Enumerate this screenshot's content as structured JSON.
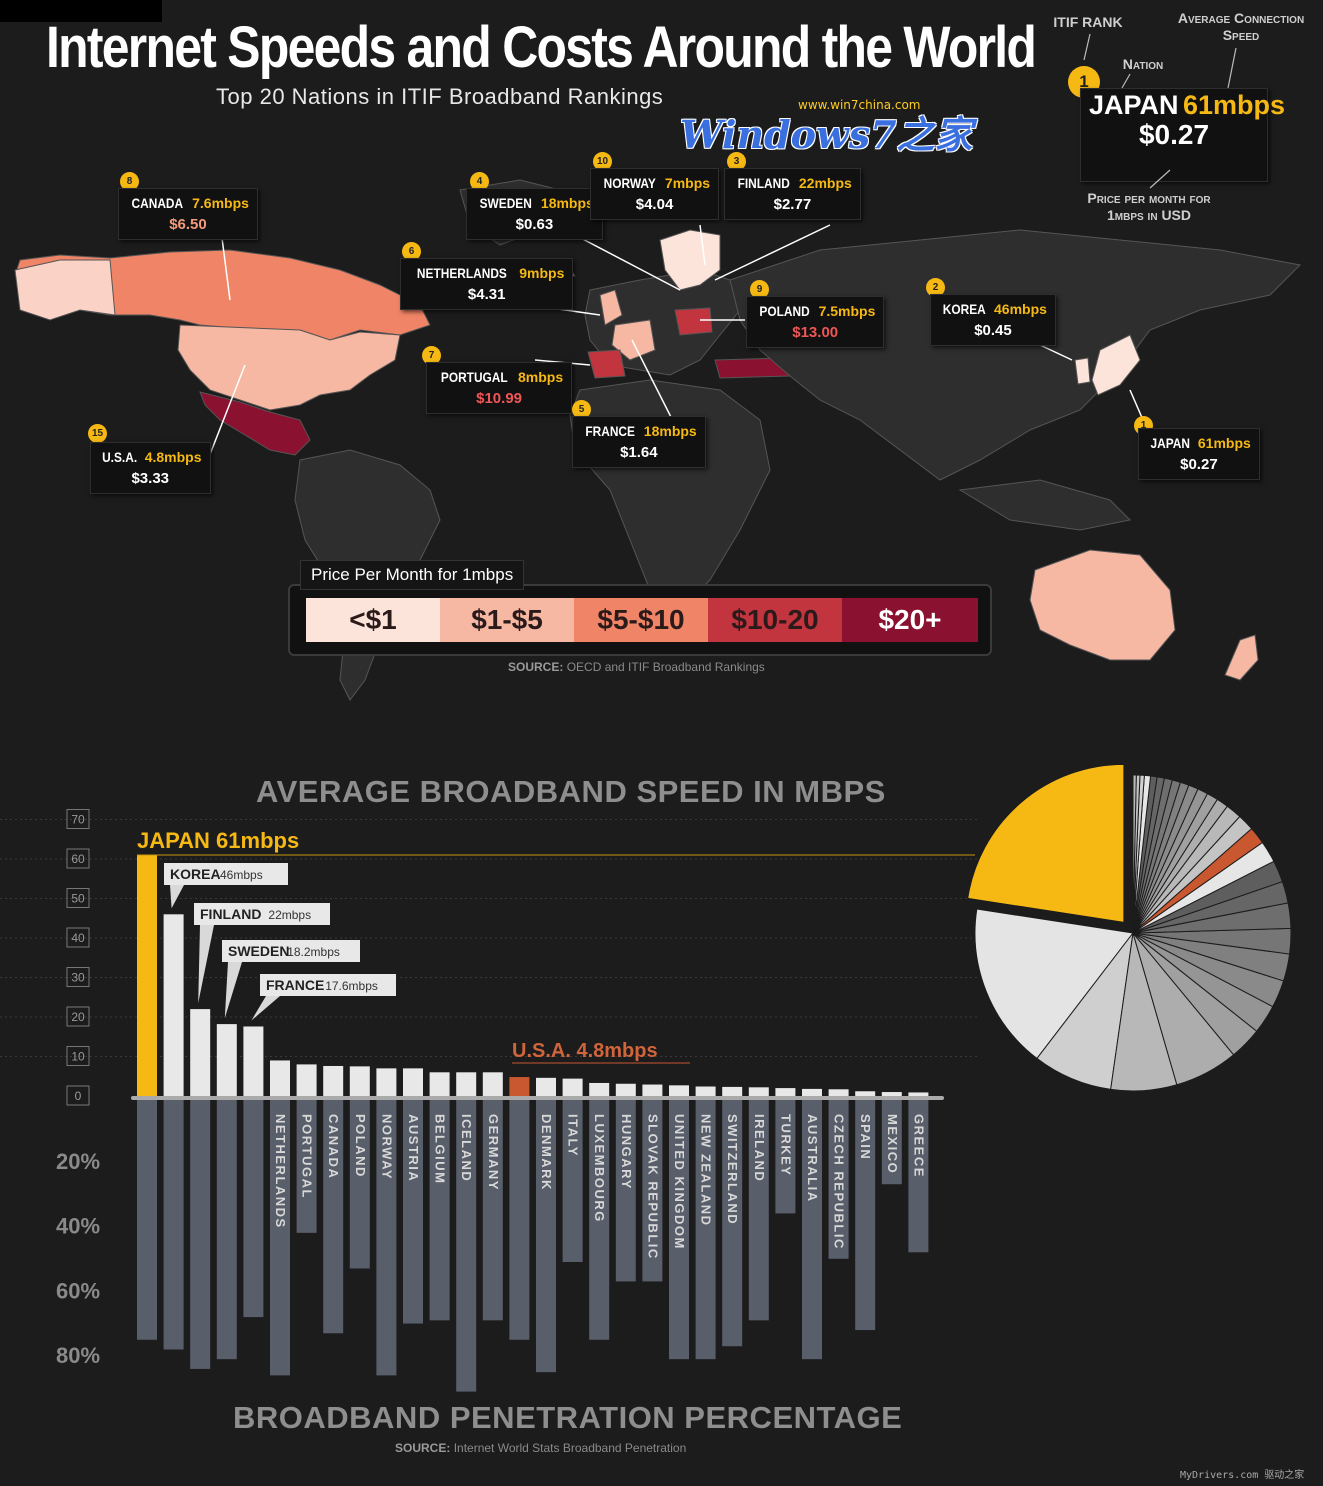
{
  "header": {
    "title": "Internet Speeds and Costs Around the World",
    "subtitle": "Top 20 Nations in ITIF Broadband Rankings"
  },
  "watermark": {
    "url": "www.win7china.com",
    "logo": "Windows7之家"
  },
  "key": {
    "itif_rank": "ITIF RANK",
    "nation": "Nation",
    "avg_speed": "Average Connection Speed",
    "price_note": "Price per month for 1mbps in USD",
    "example": {
      "rank": "1",
      "nation": "JAPAN",
      "speed": "61mbps",
      "price": "$0.27"
    }
  },
  "map_callouts": [
    {
      "rank": "8",
      "nation": "CANADA",
      "speed": "7.6mbps",
      "price": "$6.50",
      "tier": "mid"
    },
    {
      "rank": "4",
      "nation": "SWEDEN",
      "speed": "18mbps",
      "price": "$0.63",
      "tier": "low"
    },
    {
      "rank": "10",
      "nation": "NORWAY",
      "speed": "7mbps",
      "price": "$4.04",
      "tier": "low"
    },
    {
      "rank": "3",
      "nation": "FINLAND",
      "speed": "22mbps",
      "price": "$2.77",
      "tier": "low"
    },
    {
      "rank": "6",
      "nation": "NETHERLANDS",
      "speed": "9mbps",
      "price": "$4.31",
      "tier": "low"
    },
    {
      "rank": "9",
      "nation": "POLAND",
      "speed": "7.5mbps",
      "price": "$13.00",
      "tier": "high"
    },
    {
      "rank": "2",
      "nation": "KOREA",
      "speed": "46mbps",
      "price": "$0.45",
      "tier": "low"
    },
    {
      "rank": "7",
      "nation": "PORTUGAL",
      "speed": "8mbps",
      "price": "$10.99",
      "tier": "high"
    },
    {
      "rank": "5",
      "nation": "FRANCE",
      "speed": "18mbps",
      "price": "$1.64",
      "tier": "low"
    },
    {
      "rank": "15",
      "nation": "U.S.A.",
      "speed": "4.8mbps",
      "price": "$3.33",
      "tier": "low"
    },
    {
      "rank": "1",
      "nation": "JAPAN",
      "speed": "61mbps",
      "price": "$0.27",
      "tier": "low"
    }
  ],
  "price_scale": {
    "label": "Price Per Month for 1mbps",
    "bins": [
      {
        "label": "<$1",
        "color": "#fde4da",
        "text_color": "#2a1a1a"
      },
      {
        "label": "$1-$5",
        "color": "#f6b7a3",
        "text_color": "#2a1a1a"
      },
      {
        "label": "$5-$10",
        "color": "#ef8466",
        "text_color": "#2a1a1a"
      },
      {
        "label": "$10-20",
        "color": "#c2343e",
        "text_color": "#2a1a1a"
      },
      {
        "label": "$20+",
        "color": "#8a1230",
        "text_color": "#ffffff"
      }
    ]
  },
  "map_source": {
    "prefix": "SOURCE:",
    "text": "OECD and ITIF Broadband Rankings"
  },
  "chart_data": {
    "type": "bar",
    "title": "AVERAGE BROADBAND SPEED IN MBPS",
    "bottom_title": "BROADBAND PENETRATION PERCENTAGE",
    "source_prefix": "SOURCE:",
    "source": "Internet World Stats Broadband Penetration",
    "speed_ylim": [
      0,
      70
    ],
    "speed_ticks": [
      "0",
      "10",
      "20",
      "30",
      "40",
      "50",
      "60",
      "70"
    ],
    "penetration_ticks": [
      "20%",
      "40%",
      "60%",
      "80%"
    ],
    "penetration_ylim": [
      0,
      90
    ],
    "countries": [
      {
        "name": "",
        "speed": 61,
        "penetration": 74,
        "color": "#f6b913"
      },
      {
        "name": "",
        "speed": 46,
        "penetration": 77,
        "color": "#e8e8e8"
      },
      {
        "name": "",
        "speed": 22,
        "penetration": 83,
        "color": "#e8e8e8"
      },
      {
        "name": "",
        "speed": 18.2,
        "penetration": 80,
        "color": "#e8e8e8"
      },
      {
        "name": "",
        "speed": 17.6,
        "penetration": 67,
        "color": "#e8e8e8"
      },
      {
        "name": "NETHERLANDS",
        "speed": 9,
        "penetration": 85,
        "color": "#e8e8e8"
      },
      {
        "name": "PORTUGAL",
        "speed": 8,
        "penetration": 41,
        "color": "#e8e8e8"
      },
      {
        "name": "CANADA",
        "speed": 7.6,
        "penetration": 72,
        "color": "#e8e8e8"
      },
      {
        "name": "POLAND",
        "speed": 7.5,
        "penetration": 52,
        "color": "#e8e8e8"
      },
      {
        "name": "NORWAY",
        "speed": 7,
        "penetration": 85,
        "color": "#e8e8e8"
      },
      {
        "name": "AUSTRIA",
        "speed": 7,
        "penetration": 69,
        "color": "#e8e8e8"
      },
      {
        "name": "BELGIUM",
        "speed": 6,
        "penetration": 68,
        "color": "#e8e8e8"
      },
      {
        "name": "ICELAND",
        "speed": 6,
        "penetration": 90,
        "color": "#e8e8e8"
      },
      {
        "name": "GERMANY",
        "speed": 6,
        "penetration": 68,
        "color": "#e8e8e8"
      },
      {
        "name": "",
        "speed": 4.8,
        "penetration": 74,
        "color": "#c9572f"
      },
      {
        "name": "DENMARK",
        "speed": 4.6,
        "penetration": 84,
        "color": "#e8e8e8"
      },
      {
        "name": "ITALY",
        "speed": 4.4,
        "penetration": 50,
        "color": "#e8e8e8"
      },
      {
        "name": "LUXEMBOURG",
        "speed": 3.3,
        "penetration": 74,
        "color": "#e8e8e8"
      },
      {
        "name": "HUNGARY",
        "speed": 3.1,
        "penetration": 56,
        "color": "#e8e8e8"
      },
      {
        "name": "SLOVAK REPUBLIC",
        "speed": 2.9,
        "penetration": 56,
        "color": "#e8e8e8"
      },
      {
        "name": "UNITED KINGDOM",
        "speed": 2.7,
        "penetration": 80,
        "color": "#e8e8e8"
      },
      {
        "name": "NEW ZEALAND",
        "speed": 2.4,
        "penetration": 80,
        "color": "#e8e8e8"
      },
      {
        "name": "SWITZERLAND",
        "speed": 2.3,
        "penetration": 76,
        "color": "#e8e8e8"
      },
      {
        "name": "IRELAND",
        "speed": 2.2,
        "penetration": 68,
        "color": "#e8e8e8"
      },
      {
        "name": "TURKEY",
        "speed": 2,
        "penetration": 35,
        "color": "#e8e8e8"
      },
      {
        "name": "AUSTRALIA",
        "speed": 1.8,
        "penetration": 80,
        "color": "#e8e8e8"
      },
      {
        "name": "CZECH REPUBLIC",
        "speed": 1.7,
        "penetration": 49,
        "color": "#e8e8e8"
      },
      {
        "name": "SPAIN",
        "speed": 1.2,
        "penetration": 71,
        "color": "#e8e8e8"
      },
      {
        "name": "MEXICO",
        "speed": 1,
        "penetration": 26,
        "color": "#e8e8e8"
      },
      {
        "name": "GREECE",
        "speed": 0.9,
        "penetration": 47,
        "color": "#e8e8e8"
      }
    ],
    "labels": [
      {
        "name": "JAPAN",
        "value": "61mbps"
      },
      {
        "name": "KOREA",
        "value": "46mbps"
      },
      {
        "name": "FINLAND",
        "value": "22mbps"
      },
      {
        "name": "SWEDEN",
        "value": "18.2mbps"
      },
      {
        "name": "FRANCE",
        "value": "17.6mbps"
      },
      {
        "name": "U.S.A.",
        "value": "4.8mbps"
      }
    ]
  },
  "footer": {
    "credit": "MyDrivers.com 驱动之家"
  }
}
